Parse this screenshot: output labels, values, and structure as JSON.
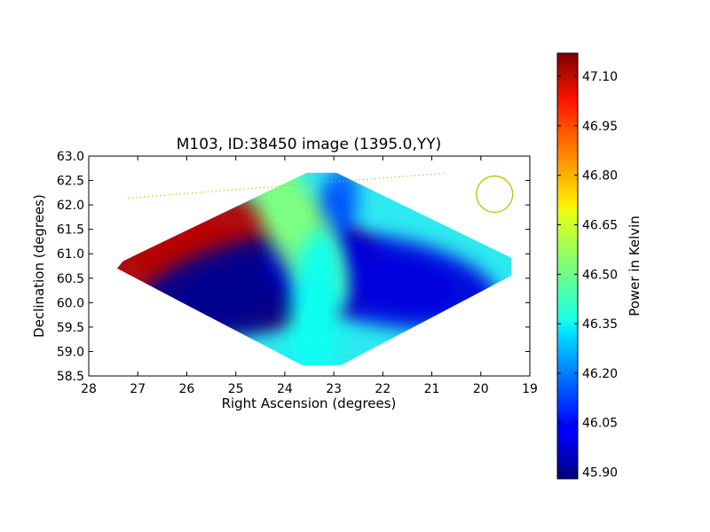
{
  "chart_data": {
    "type": "heatmap",
    "title": "M103, ID:38450 image (1395.0,YY)",
    "xlabel": "Right Ascension (degrees)",
    "ylabel": "Declination (degrees)",
    "xlim": [
      28,
      19
    ],
    "ylim": [
      58.5,
      63.0
    ],
    "x_ticks": [
      "28",
      "27",
      "26",
      "25",
      "24",
      "23",
      "22",
      "21",
      "20",
      "19"
    ],
    "y_ticks": [
      "58.5",
      "59.0",
      "59.5",
      "60.0",
      "60.5",
      "61.0",
      "61.5",
      "62.0",
      "62.5",
      "63.0"
    ],
    "colorbar": {
      "label": "Power in Kelvin",
      "colormap": "jet",
      "range": [
        45.88,
        47.17
      ],
      "ticks": [
        "45.90",
        "46.05",
        "46.20",
        "46.35",
        "46.50",
        "46.65",
        "46.80",
        "46.95",
        "47.10"
      ]
    },
    "field_outline_ra_dec": [
      [
        23.55,
        62.66
      ],
      [
        22.95,
        62.66
      ],
      [
        19.38,
        60.92
      ],
      [
        19.38,
        60.55
      ],
      [
        22.85,
        58.72
      ],
      [
        23.65,
        58.72
      ],
      [
        27.42,
        60.7
      ],
      [
        27.3,
        60.85
      ]
    ],
    "field_center": [
      23.3,
      60.69
    ],
    "beam_circle": {
      "ra": 19.72,
      "dec": 62.22,
      "radius_deg": 0.37,
      "color": "#bfbf00"
    },
    "dotted_line": {
      "from": [
        27.2,
        62.14
      ],
      "to": [
        20.7,
        62.65
      ],
      "color": "#bfbf00"
    },
    "features": [
      {
        "name": "hot lobe",
        "ra": 26.3,
        "dec": 61.05,
        "value": 47.1
      },
      {
        "name": "cold lobe",
        "ra": 25.5,
        "dec": 60.12,
        "value": 45.9
      },
      {
        "name": "upper-right cold lobe",
        "ra": 23.0,
        "dec": 61.8,
        "value": 46.15
      },
      {
        "name": "lower-right cold lobe",
        "ra": 21.2,
        "dec": 60.3,
        "value": 46.0
      },
      {
        "name": "upper bright region",
        "ra": 24.0,
        "dec": 62.0,
        "value": 46.52
      },
      {
        "name": "lower bright region",
        "ra": 23.4,
        "dec": 59.4,
        "value": 46.38
      }
    ]
  }
}
